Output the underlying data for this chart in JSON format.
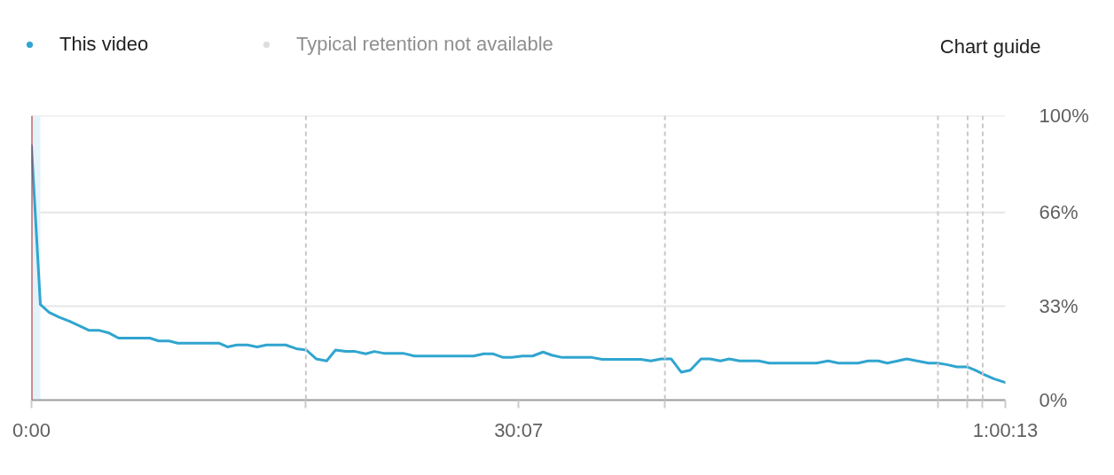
{
  "chart_data": {
    "type": "line",
    "x": [
      0,
      33,
      66,
      104,
      142,
      181,
      214,
      252,
      285,
      323,
      439,
      472,
      510,
      543,
      697,
      727,
      762,
      801,
      837,
      872,
      943,
      982,
      1020,
      1056,
      1095,
      1128,
      1166,
      1201,
      1240,
      1272,
      1311,
      1382,
      1421,
      1640,
      1678,
      1711,
      1750,
      1782,
      1821,
      1859,
      1898,
      1930,
      1969,
      2079,
      2117,
      2260,
      2298,
      2336,
      2373,
      2411,
      2444,
      2484,
      2517,
      2556,
      2589,
      2627,
      2698,
      2737,
      2912,
      2956,
      2994,
      3066,
      3104,
      3142,
      3175,
      3214,
      3247,
      3285,
      3329,
      3362,
      3395,
      3433,
      3471,
      3504,
      3532,
      3570,
      3613
    ],
    "series": [
      {
        "name": "This video",
        "color": "#30a5cf",
        "values": [
          89.4,
          33.6,
          30.8,
          29.1,
          27.7,
          26.0,
          24.5,
          24.5,
          23.7,
          21.8,
          21.8,
          20.8,
          20.8,
          20.0,
          20.0,
          18.7,
          19.4,
          19.4,
          18.7,
          19.4,
          19.4,
          18.1,
          17.6,
          14.5,
          13.8,
          17.6,
          17.1,
          17.1,
          16.3,
          17.1,
          16.4,
          16.4,
          15.5,
          15.5,
          16.3,
          16.3,
          15.0,
          15.0,
          15.5,
          15.5,
          16.9,
          15.8,
          15.0,
          15.0,
          14.3,
          14.3,
          13.8,
          14.5,
          14.5,
          9.8,
          10.5,
          14.5,
          14.5,
          13.8,
          14.5,
          13.8,
          13.8,
          13.0,
          13.0,
          13.8,
          13.0,
          13.0,
          13.8,
          13.8,
          13.0,
          13.8,
          14.5,
          13.8,
          13.0,
          13.0,
          12.5,
          11.7,
          11.7,
          10.4,
          9.1,
          7.5,
          6.2
        ]
      },
      {
        "name": "Typical retention not available",
        "color": "#dddddd",
        "values": [
          null,
          null,
          null,
          null,
          null,
          null,
          null,
          null,
          null,
          null,
          null,
          null,
          null,
          null,
          null,
          null,
          null,
          null,
          null,
          null,
          null,
          null,
          null,
          null,
          null,
          null,
          null,
          null,
          null,
          null,
          null,
          null,
          null,
          null,
          null,
          null,
          null,
          null,
          null,
          null,
          null,
          null,
          null,
          null,
          null,
          null,
          null,
          null,
          null,
          null,
          null,
          null,
          null,
          null,
          null,
          null,
          null,
          null,
          null,
          null,
          null,
          null,
          null,
          null,
          null,
          null,
          null,
          null,
          null,
          null,
          null,
          null,
          null,
          null,
          null,
          null,
          null
        ]
      }
    ],
    "xlim": [
      0,
      3613
    ],
    "xticks": [
      {
        "value": 0,
        "label": "0:00"
      },
      {
        "value": 1018,
        "label": null
      },
      {
        "value": 1807,
        "label": "30:07"
      },
      {
        "value": 2350,
        "label": null
      },
      {
        "value": 3363,
        "label": null
      },
      {
        "value": 3473,
        "label": null
      },
      {
        "value": 3529,
        "label": null
      },
      {
        "value": 3613,
        "label": "1:00:13"
      }
    ],
    "ylim": [
      0,
      100
    ],
    "yticks": [
      {
        "value": 0,
        "label": "0%"
      },
      {
        "value": 33,
        "label": "33%"
      },
      {
        "value": 66,
        "label": "66%"
      },
      {
        "value": 100,
        "label": "100%"
      }
    ],
    "grid": "y",
    "legend": "top left",
    "bands": [
      {
        "axis": "x",
        "from": 0,
        "to": 33,
        "color": "#e3f3fa"
      }
    ],
    "ref_lines": [
      {
        "axis": "x",
        "value": 1018,
        "color": "#c8c8c8",
        "line_style": "dashed"
      },
      {
        "axis": "x",
        "value": 2350,
        "color": "#c8c8c8",
        "line_style": "dashed"
      },
      {
        "axis": "x",
        "value": 3363,
        "color": "#c8c8c8",
        "line_style": "dashed"
      },
      {
        "axis": "x",
        "value": 3473,
        "color": "#c8c8c8",
        "line_style": "dashed"
      },
      {
        "axis": "x",
        "value": 3529,
        "color": "#c8c8c8",
        "line_style": "dashed"
      },
      {
        "axis": "x",
        "value": 0,
        "color": "#b71c1c"
      }
    ],
    "annotations": [
      "Chart guide"
    ]
  }
}
